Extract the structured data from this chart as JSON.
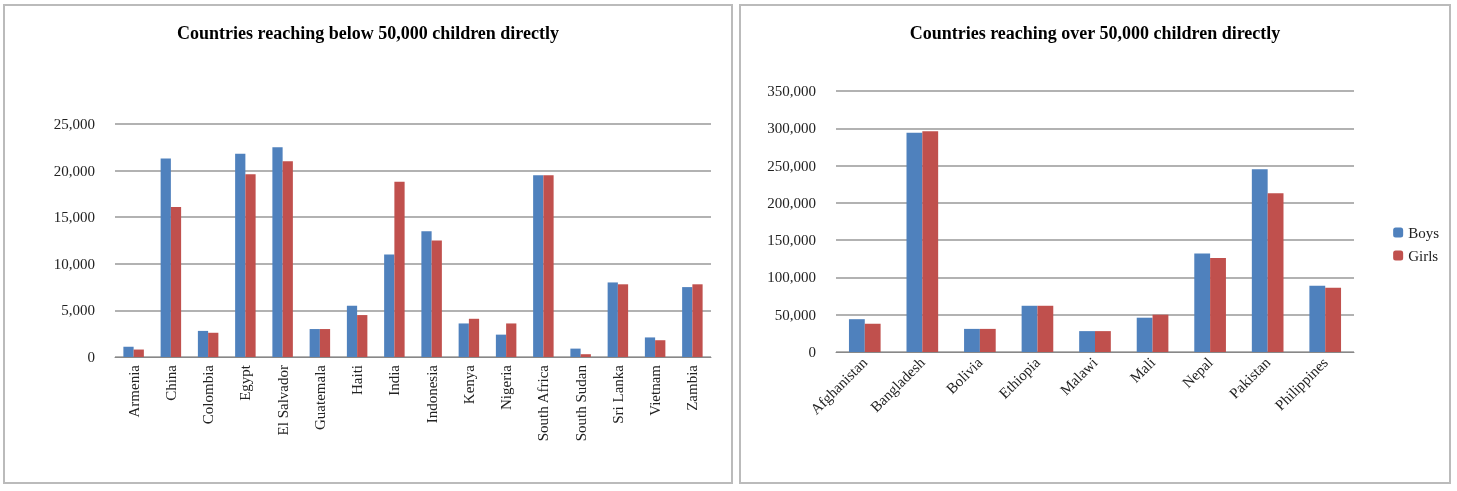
{
  "chart_data": [
    {
      "type": "bar",
      "title": "Countries reaching below 50,000 children directly",
      "categories": [
        "Armenia",
        "China",
        "Colombia",
        "Egypt",
        "El Salvador",
        "Guatemala",
        "Haiti",
        "India",
        "Indonesia",
        "Kenya",
        "Nigeria",
        "South Africa",
        "South Sudan",
        "Sri Lanka",
        "Vietnam",
        "Zambia"
      ],
      "series": [
        {
          "color": "#4f81bd",
          "values": [
            1100,
            21300,
            2800,
            21800,
            22500,
            3000,
            5500,
            11000,
            13500,
            3600,
            2400,
            19500,
            900,
            8000,
            2100,
            7500
          ]
        },
        {
          "color": "#c0504d",
          "values": [
            800,
            16100,
            2600,
            19600,
            21000,
            3000,
            4500,
            18800,
            12500,
            4100,
            3600,
            19500,
            300,
            7800,
            1800,
            7800
          ]
        }
      ],
      "ylim": [
        0,
        25000
      ],
      "yticks": [
        {
          "value": 0,
          "label": "0"
        },
        {
          "value": 5000,
          "label": "5,000"
        },
        {
          "value": 10000,
          "label": "10,000"
        },
        {
          "value": 15000,
          "label": "15,000"
        },
        {
          "value": 20000,
          "label": "20,000"
        },
        {
          "value": 25000,
          "label": "25,000"
        }
      ],
      "grid": "y",
      "legend": false
    },
    {
      "type": "bar",
      "title": "Countries reaching over 50,000 children directly",
      "categories": [
        "Afghanistan",
        "Bangladesh",
        "Bolivia",
        "Ethiopia",
        "Malawi",
        "Mali",
        "Nepal",
        "Pakistan",
        "Philippines"
      ],
      "series": [
        {
          "name": "Boys",
          "color": "#4f81bd",
          "values": [
            44000,
            294000,
            31000,
            62000,
            28000,
            46000,
            132000,
            245000,
            89000
          ]
        },
        {
          "name": "Girls",
          "color": "#c0504d",
          "values": [
            38000,
            296000,
            31000,
            62000,
            28000,
            50000,
            126000,
            213000,
            86000
          ]
        }
      ],
      "ylim": [
        0,
        350000
      ],
      "yticks": [
        {
          "value": 0,
          "label": "0"
        },
        {
          "value": 50000,
          "label": "50,000"
        },
        {
          "value": 100000,
          "label": "100,000"
        },
        {
          "value": 150000,
          "label": "150,000"
        },
        {
          "value": 200000,
          "label": "200,000"
        },
        {
          "value": 250000,
          "label": "250,000"
        },
        {
          "value": 300000,
          "label": "300,000"
        },
        {
          "value": 350000,
          "label": "350,000"
        }
      ],
      "grid": "y",
      "legend": "right"
    }
  ]
}
